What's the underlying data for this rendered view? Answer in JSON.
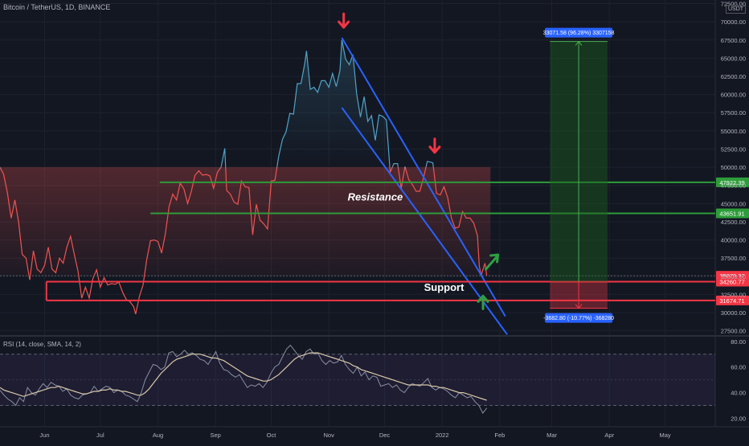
{
  "header": {
    "symbol": "Bitcoin / TetherUS, 1D, BINANCE",
    "currency": "USDT"
  },
  "rsi_header": "RSI (14, close, SMA, 14, 2)",
  "colors": {
    "background": "#131722",
    "grid": "#1e222d",
    "price_down": "#f05350",
    "price_up": "#4fa3c7",
    "support": "#f23645",
    "resistance": "#2e9c3a",
    "channel": "#2962ff",
    "target_zone": "#1b5e20",
    "rsi_line": "#8a8fa3",
    "rsi_ma": "#d8c8a8",
    "arrow_down": "#f23645",
    "arrow_up": "#2ea043"
  },
  "chart_data": {
    "type": "line",
    "xlabel": "",
    "ylabel": "",
    "x_ticks": [
      {
        "label": "Jun",
        "date": "2021-06-01"
      },
      {
        "label": "Jul",
        "date": "2021-07-01"
      },
      {
        "label": "Aug",
        "date": "2021-08-01"
      },
      {
        "label": "Sep",
        "date": "2021-09-01"
      },
      {
        "label": "Oct",
        "date": "2021-10-01"
      },
      {
        "label": "Nov",
        "date": "2021-11-01"
      },
      {
        "label": "Dec",
        "date": "2021-12-01"
      },
      {
        "label": "2022",
        "date": "2022-01-01"
      },
      {
        "label": "Feb",
        "date": "2022-02-01"
      },
      {
        "label": "Mar",
        "date": "2022-03-01"
      },
      {
        "label": "Apr",
        "date": "2022-04-01"
      },
      {
        "label": "May",
        "date": "2022-05-01"
      }
    ],
    "xlim": [
      "2021-05-08",
      "2022-05-28"
    ],
    "ylim": [
      26800,
      73000
    ],
    "y_ticks": [
      27500,
      30000,
      32500,
      35000,
      37500,
      40000,
      42500,
      45000,
      47500,
      50000,
      52500,
      55000,
      57500,
      60000,
      62500,
      65000,
      67500,
      70000,
      72500
    ],
    "y_tick_labels": [
      "27500.00",
      "30000.00",
      "32500.00",
      "35000.00",
      "37500.00",
      "40000.00",
      "42500.00",
      "45000.00",
      "47500.00",
      "50000.00",
      "52500.00",
      "55000.00",
      "57500.00",
      "60000.00",
      "62500.00",
      "65000.00",
      "67500.00",
      "70000.00",
      "72500.00"
    ],
    "series": [
      {
        "points": [
          [
            "2021-05-08",
            50000
          ],
          [
            "2021-05-10",
            49000
          ],
          [
            "2021-05-12",
            46500
          ],
          [
            "2021-05-14",
            43000
          ],
          [
            "2021-05-16",
            45500
          ],
          [
            "2021-05-18",
            42500
          ],
          [
            "2021-05-20",
            38000
          ],
          [
            "2021-05-22",
            37500
          ],
          [
            "2021-05-24",
            34500
          ],
          [
            "2021-05-26",
            38500
          ],
          [
            "2021-05-28",
            36000
          ],
          [
            "2021-05-30",
            35500
          ],
          [
            "2021-06-01",
            36500
          ],
          [
            "2021-06-03",
            39000
          ],
          [
            "2021-06-05",
            36000
          ],
          [
            "2021-06-07",
            35500
          ],
          [
            "2021-06-09",
            37500
          ],
          [
            "2021-06-11",
            36800
          ],
          [
            "2021-06-13",
            39000
          ],
          [
            "2021-06-15",
            40500
          ],
          [
            "2021-06-17",
            38000
          ],
          [
            "2021-06-19",
            35700
          ],
          [
            "2021-06-21",
            32000
          ],
          [
            "2021-06-23",
            33500
          ],
          [
            "2021-06-25",
            32000
          ],
          [
            "2021-06-27",
            34700
          ],
          [
            "2021-06-29",
            35900
          ],
          [
            "2021-07-01",
            33500
          ],
          [
            "2021-07-03",
            34800
          ],
          [
            "2021-07-05",
            33800
          ],
          [
            "2021-07-07",
            34000
          ],
          [
            "2021-07-09",
            33900
          ],
          [
            "2021-07-11",
            34200
          ],
          [
            "2021-07-13",
            32800
          ],
          [
            "2021-07-15",
            31800
          ],
          [
            "2021-07-17",
            31500
          ],
          [
            "2021-07-19",
            30800
          ],
          [
            "2021-07-20",
            29800
          ],
          [
            "2021-07-22",
            32200
          ],
          [
            "2021-07-24",
            33800
          ],
          [
            "2021-07-26",
            37300
          ],
          [
            "2021-07-28",
            39900
          ],
          [
            "2021-07-30",
            40000
          ],
          [
            "2021-08-01",
            39800
          ],
          [
            "2021-08-03",
            38200
          ],
          [
            "2021-08-05",
            40800
          ],
          [
            "2021-08-07",
            44600
          ],
          [
            "2021-08-09",
            46300
          ],
          [
            "2021-08-11",
            45500
          ],
          [
            "2021-08-13",
            47800
          ],
          [
            "2021-08-15",
            47000
          ],
          [
            "2021-08-17",
            45000
          ],
          [
            "2021-08-19",
            46700
          ],
          [
            "2021-08-21",
            48900
          ],
          [
            "2021-08-23",
            49500
          ],
          [
            "2021-08-25",
            48900
          ],
          [
            "2021-08-27",
            49000
          ],
          [
            "2021-08-29",
            48800
          ],
          [
            "2021-08-31",
            47100
          ],
          [
            "2021-09-02",
            49300
          ],
          [
            "2021-09-04",
            50000
          ],
          [
            "2021-09-06",
            52600
          ],
          [
            "2021-09-07",
            46800
          ],
          [
            "2021-09-09",
            46300
          ],
          [
            "2021-09-11",
            45200
          ],
          [
            "2021-09-13",
            44900
          ],
          [
            "2021-09-15",
            48100
          ],
          [
            "2021-09-17",
            47300
          ],
          [
            "2021-09-19",
            47200
          ],
          [
            "2021-09-21",
            40700
          ],
          [
            "2021-09-23",
            44900
          ],
          [
            "2021-09-25",
            42700
          ],
          [
            "2021-09-27",
            42200
          ],
          [
            "2021-09-29",
            41500
          ],
          [
            "2021-10-01",
            48100
          ],
          [
            "2021-10-03",
            48200
          ],
          [
            "2021-10-05",
            51500
          ],
          [
            "2021-10-07",
            53800
          ],
          [
            "2021-10-09",
            54900
          ],
          [
            "2021-10-11",
            57400
          ],
          [
            "2021-10-13",
            57300
          ],
          [
            "2021-10-15",
            61500
          ],
          [
            "2021-10-17",
            61500
          ],
          [
            "2021-10-19",
            64200
          ],
          [
            "2021-10-20",
            66000
          ],
          [
            "2021-10-22",
            60700
          ],
          [
            "2021-10-24",
            61000
          ],
          [
            "2021-10-26",
            60300
          ],
          [
            "2021-10-28",
            61900
          ],
          [
            "2021-10-30",
            61900
          ],
          [
            "2021-11-01",
            61000
          ],
          [
            "2021-11-03",
            62900
          ],
          [
            "2021-11-05",
            61100
          ],
          [
            "2021-11-07",
            63300
          ],
          [
            "2021-11-08",
            67500
          ],
          [
            "2021-11-10",
            64900
          ],
          [
            "2021-11-12",
            64100
          ],
          [
            "2021-11-14",
            65500
          ],
          [
            "2021-11-16",
            60100
          ],
          [
            "2021-11-18",
            56900
          ],
          [
            "2021-11-20",
            59700
          ],
          [
            "2021-11-22",
            56300
          ],
          [
            "2021-11-24",
            57100
          ],
          [
            "2021-11-26",
            53700
          ],
          [
            "2021-11-28",
            57200
          ],
          [
            "2021-11-30",
            57000
          ],
          [
            "2021-12-02",
            56500
          ],
          [
            "2021-12-04",
            49300
          ],
          [
            "2021-12-06",
            50500
          ],
          [
            "2021-12-08",
            50500
          ],
          [
            "2021-12-10",
            47100
          ],
          [
            "2021-12-12",
            50100
          ],
          [
            "2021-12-14",
            48300
          ],
          [
            "2021-12-16",
            47600
          ],
          [
            "2021-12-18",
            46700
          ],
          [
            "2021-12-20",
            46700
          ],
          [
            "2021-12-22",
            48600
          ],
          [
            "2021-12-24",
            50800
          ],
          [
            "2021-12-26",
            50700
          ],
          [
            "2021-12-27",
            50600
          ],
          [
            "2021-12-29",
            46400
          ],
          [
            "2021-12-31",
            46200
          ],
          [
            "2022-01-02",
            47300
          ],
          [
            "2022-01-04",
            45800
          ],
          [
            "2022-01-06",
            43000
          ],
          [
            "2022-01-08",
            41600
          ],
          [
            "2022-01-10",
            41800
          ],
          [
            "2022-01-12",
            43900
          ],
          [
            "2022-01-14",
            43000
          ],
          [
            "2022-01-16",
            43000
          ],
          [
            "2022-01-18",
            42300
          ],
          [
            "2022-01-20",
            40600
          ],
          [
            "2022-01-21",
            36400
          ],
          [
            "2022-01-22",
            35100
          ],
          [
            "2022-01-24",
            36800
          ],
          [
            "2022-01-25",
            35100
          ]
        ]
      }
    ],
    "levels": [
      {
        "price": 47922.39,
        "label": "47922.39",
        "kind": "resistance"
      },
      {
        "price": 43651.91,
        "label": "43651.91",
        "kind": "resistance"
      },
      {
        "price": 35070.37,
        "label": "35070.37",
        "kind": "current"
      },
      {
        "price": 34260.77,
        "label": "34260.77",
        "kind": "support"
      },
      {
        "price": 31674.71,
        "label": "31674.71",
        "kind": "support"
      }
    ],
    "annotations": [
      {
        "text": "Resistance",
        "date": "2021-11-26",
        "price": 45400
      },
      {
        "text": "Support",
        "date": "2022-01-02",
        "price": 33000
      }
    ],
    "channel": {
      "upper": [
        [
          "2021-11-08",
          67800
        ],
        [
          "2022-02-04",
          29500
        ]
      ],
      "lower": [
        [
          "2021-11-08",
          58200
        ],
        [
          "2022-02-05",
          27000
        ]
      ]
    },
    "measure": {
      "from_date": "2022-02-28",
      "to_date": "2022-03-31",
      "top": 67300,
      "mid": 34260,
      "bottom": 30600,
      "up_label": "33071.58 (96.28%) 3307158",
      "down_label": "-3682.80 (-10.77%) -368280"
    },
    "arrows": [
      {
        "dir": "down",
        "date": "2021-11-09",
        "price": 70000
      },
      {
        "dir": "down",
        "date": "2021-12-28",
        "price": 52800
      },
      {
        "dir": "up",
        "date": "2022-01-23",
        "price": 31400
      },
      {
        "dir": "up-right",
        "date": "2022-01-28",
        "price": 37300
      }
    ],
    "rsi": {
      "ylim": [
        14,
        83
      ],
      "tick_labels": [
        "80.00",
        "60.00",
        "40.00",
        "20.00"
      ],
      "ticks": [
        80,
        60,
        40,
        20
      ],
      "band": [
        30,
        70
      ],
      "values": [
        42,
        38,
        35,
        33,
        30,
        36,
        33,
        44,
        40,
        38,
        43,
        47,
        44,
        48,
        46,
        45,
        41,
        43,
        38,
        36,
        35,
        38,
        39,
        40,
        45,
        41,
        43,
        45,
        44,
        40,
        42,
        41,
        38,
        37,
        35,
        33,
        40,
        50,
        56,
        62,
        61,
        58,
        60,
        71,
        72,
        68,
        70,
        73,
        70,
        71,
        69,
        66,
        65,
        62,
        67,
        72,
        63,
        58,
        57,
        54,
        52,
        54,
        49,
        44,
        46,
        45,
        47,
        44,
        48,
        55,
        60,
        62,
        68,
        74,
        77,
        73,
        69,
        66,
        72,
        74,
        70,
        71,
        65,
        62,
        65,
        63,
        64,
        69,
        62,
        58,
        55,
        60,
        53,
        56,
        50,
        53,
        52,
        45,
        46,
        47,
        44,
        46,
        42,
        40,
        44,
        47,
        46,
        45,
        48,
        51,
        44,
        42,
        44,
        43,
        41,
        38,
        36,
        40,
        38,
        36,
        37,
        33,
        30,
        24,
        28
      ],
      "ma": [
        44,
        42,
        41,
        40,
        39,
        38,
        37,
        38,
        39,
        40,
        41,
        42,
        43,
        44,
        44,
        45,
        44,
        43,
        42,
        41,
        40,
        39,
        39,
        40,
        41,
        41,
        42,
        42,
        43,
        42,
        42,
        41,
        41,
        40,
        39,
        38,
        38,
        40,
        43,
        47,
        51,
        55,
        58,
        61,
        64,
        66,
        67,
        68,
        69,
        70,
        70,
        70,
        69,
        68,
        67,
        67,
        66,
        65,
        63,
        61,
        59,
        57,
        55,
        53,
        52,
        51,
        50,
        49,
        49,
        50,
        52,
        54,
        57,
        60,
        63,
        66,
        68,
        69,
        70,
        71,
        71,
        71,
        70,
        69,
        68,
        67,
        66,
        65,
        64,
        63,
        61,
        60,
        58,
        57,
        56,
        55,
        54,
        53,
        52,
        51,
        50,
        49,
        48,
        47,
        46,
        46,
        46,
        46,
        46,
        46,
        45,
        45,
        44,
        44,
        43,
        42,
        41,
        40,
        40,
        39,
        38,
        37,
        36,
        35,
        34
      ]
    }
  }
}
